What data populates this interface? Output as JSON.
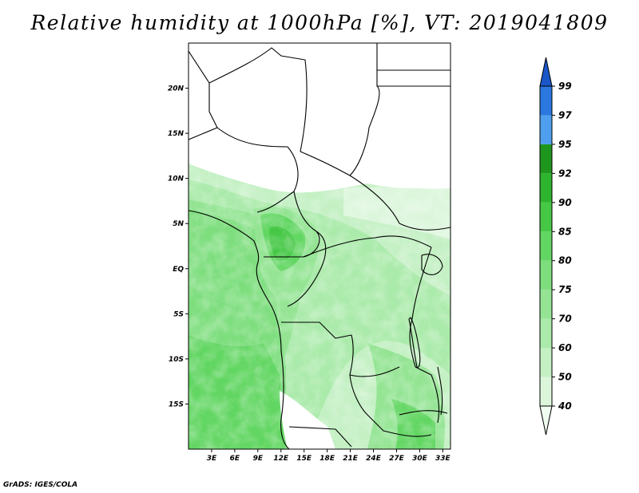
{
  "title": "Relative humidity at 1000hPa [%], VT: 2019041809",
  "credit": "GrADS: IGES/COLA",
  "map": {
    "lon_range": [
      0,
      34
    ],
    "lat_range": [
      -20,
      25
    ],
    "lat_ticks": [
      {
        "value": 20,
        "label": "20N"
      },
      {
        "value": 15,
        "label": "15N"
      },
      {
        "value": 10,
        "label": "10N"
      },
      {
        "value": 5,
        "label": "5N"
      },
      {
        "value": 0,
        "label": "EQ"
      },
      {
        "value": -5,
        "label": "5S"
      },
      {
        "value": -10,
        "label": "10S"
      },
      {
        "value": -15,
        "label": "15S"
      }
    ],
    "lon_ticks": [
      {
        "value": 3,
        "label": "3E"
      },
      {
        "value": 6,
        "label": "6E"
      },
      {
        "value": 9,
        "label": "9E"
      },
      {
        "value": 12,
        "label": "12E"
      },
      {
        "value": 15,
        "label": "15E"
      },
      {
        "value": 18,
        "label": "18E"
      },
      {
        "value": 21,
        "label": "21E"
      },
      {
        "value": 24,
        "label": "24E"
      },
      {
        "value": 27,
        "label": "27E"
      },
      {
        "value": 30,
        "label": "30E"
      },
      {
        "value": 33,
        "label": "33E"
      }
    ]
  },
  "colorbar": {
    "levels": [
      "40",
      "50",
      "60",
      "70",
      "75",
      "80",
      "85",
      "90",
      "92",
      "95",
      "97",
      "99"
    ],
    "colors": [
      "#f0fcf0",
      "#dcf6dc",
      "#c4f0c4",
      "#aaeaaa",
      "#94e494",
      "#7ede7e",
      "#62d662",
      "#46c846",
      "#2eb42e",
      "#1e961e",
      "#4ea0ee",
      "#2a78e0",
      "#1a56c8"
    ]
  }
}
